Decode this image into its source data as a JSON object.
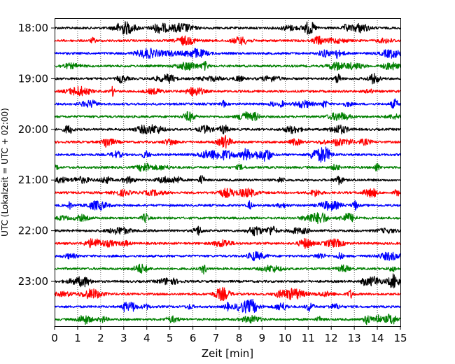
{
  "chart_data": {
    "type": "line",
    "title": "",
    "xlabel": "Zeit  [min]",
    "ylabel": "UTC (Lokalzeit = UTC + 02:00)",
    "xlim": [
      0,
      15
    ],
    "x_ticks": [
      "0",
      "1",
      "2",
      "3",
      "4",
      "5",
      "6",
      "7",
      "8",
      "9",
      "10",
      "11",
      "12",
      "13",
      "14",
      "15"
    ],
    "y_ticks": [
      "18:00",
      "19:00",
      "20:00",
      "21:00",
      "22:00",
      "23:00"
    ],
    "grid": "vertical dotted at each minute",
    "trace_interval_min": 15,
    "trace_colors": [
      "#000000",
      "#ff0000",
      "#0000ff",
      "#008000"
    ],
    "traces": [
      {
        "start": "18:00",
        "color": "#000000"
      },
      {
        "start": "18:15",
        "color": "#ff0000"
      },
      {
        "start": "18:30",
        "color": "#0000ff"
      },
      {
        "start": "18:45",
        "color": "#008000"
      },
      {
        "start": "19:00",
        "color": "#000000"
      },
      {
        "start": "19:15",
        "color": "#ff0000"
      },
      {
        "start": "19:30",
        "color": "#0000ff"
      },
      {
        "start": "19:45",
        "color": "#008000"
      },
      {
        "start": "20:00",
        "color": "#000000"
      },
      {
        "start": "20:15",
        "color": "#ff0000"
      },
      {
        "start": "20:30",
        "color": "#0000ff"
      },
      {
        "start": "20:45",
        "color": "#008000"
      },
      {
        "start": "21:00",
        "color": "#000000"
      },
      {
        "start": "21:15",
        "color": "#ff0000"
      },
      {
        "start": "21:30",
        "color": "#0000ff"
      },
      {
        "start": "21:45",
        "color": "#008000"
      },
      {
        "start": "22:00",
        "color": "#000000"
      },
      {
        "start": "22:15",
        "color": "#ff0000"
      },
      {
        "start": "22:30",
        "color": "#0000ff"
      },
      {
        "start": "22:45",
        "color": "#008000"
      },
      {
        "start": "23:00",
        "color": "#000000"
      },
      {
        "start": "23:15",
        "color": "#ff0000"
      },
      {
        "start": "23:30",
        "color": "#0000ff"
      },
      {
        "start": "23:45",
        "color": "#008000"
      }
    ]
  }
}
